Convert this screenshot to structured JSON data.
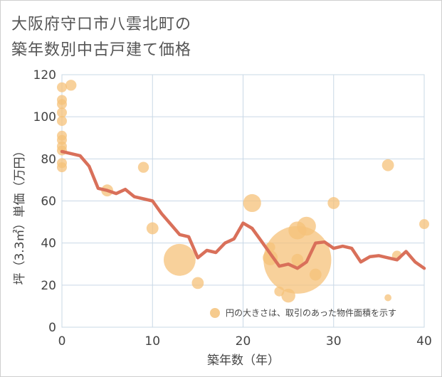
{
  "chart_data": {
    "type": "scatter",
    "title_line1": "大阪府守口市八雲北町の",
    "title_line2": "築年数別中古戸建て価格",
    "xlabel": "築年数（年）",
    "ylabel": "坪（3.3㎡）単価（万円）",
    "xlim": [
      0,
      40
    ],
    "ylim": [
      0,
      120
    ],
    "xticks": [
      "0",
      "10",
      "20",
      "30",
      "40"
    ],
    "yticks": [
      "0",
      "20",
      "40",
      "60",
      "80",
      "100",
      "120"
    ],
    "legend": "円の大きさは、取引のあった物件面積を示す",
    "colors": {
      "bubble": "#f5c27a",
      "line": "#d9705a",
      "grid": "#c9d8e6"
    },
    "bubbles": [
      {
        "x": 0,
        "y": 114,
        "s": 1.0
      },
      {
        "x": 0,
        "y": 108,
        "s": 1.0
      },
      {
        "x": 0,
        "y": 106,
        "s": 1.0
      },
      {
        "x": 0,
        "y": 102,
        "s": 1.0
      },
      {
        "x": 0,
        "y": 98,
        "s": 1.0
      },
      {
        "x": 0,
        "y": 91,
        "s": 1.0
      },
      {
        "x": 0,
        "y": 89,
        "s": 1.0
      },
      {
        "x": 0,
        "y": 86,
        "s": 1.0
      },
      {
        "x": 0,
        "y": 84,
        "s": 1.0
      },
      {
        "x": 0,
        "y": 78,
        "s": 1.0
      },
      {
        "x": 0,
        "y": 76,
        "s": 1.0
      },
      {
        "x": 1,
        "y": 115,
        "s": 1.1
      },
      {
        "x": 5,
        "y": 65,
        "s": 1.2
      },
      {
        "x": 9,
        "y": 76,
        "s": 1.1
      },
      {
        "x": 10,
        "y": 47,
        "s": 1.2
      },
      {
        "x": 13,
        "y": 32,
        "s": 3.2
      },
      {
        "x": 15,
        "y": 21,
        "s": 1.2
      },
      {
        "x": 21,
        "y": 59,
        "s": 1.8
      },
      {
        "x": 23,
        "y": 38,
        "s": 1.0
      },
      {
        "x": 23,
        "y": 33,
        "s": 1.5
      },
      {
        "x": 24,
        "y": 17,
        "s": 1.0
      },
      {
        "x": 25,
        "y": 15,
        "s": 1.4
      },
      {
        "x": 26,
        "y": 32,
        "s": 6.8
      },
      {
        "x": 26,
        "y": 46,
        "s": 1.8
      },
      {
        "x": 26,
        "y": 32,
        "s": 1.2
      },
      {
        "x": 27,
        "y": 48,
        "s": 1.9
      },
      {
        "x": 28,
        "y": 25,
        "s": 1.2
      },
      {
        "x": 30,
        "y": 59,
        "s": 1.2
      },
      {
        "x": 36,
        "y": 77,
        "s": 1.2
      },
      {
        "x": 36,
        "y": 14,
        "s": 0.7
      },
      {
        "x": 37,
        "y": 34,
        "s": 1.0
      },
      {
        "x": 40,
        "y": 49,
        "s": 1.0
      }
    ],
    "trend": {
      "x": [
        0,
        1,
        2,
        3,
        4,
        5,
        6,
        7,
        8,
        9,
        10,
        11,
        12,
        13,
        14,
        15,
        16,
        17,
        18,
        19,
        20,
        21,
        22,
        23,
        24,
        25,
        26,
        27,
        28,
        29,
        30,
        31,
        32,
        33,
        34,
        35,
        36,
        37,
        38,
        39,
        40
      ],
      "y": [
        83.5,
        82.5,
        81.5,
        76.5,
        66,
        65,
        63.5,
        65.5,
        62,
        61,
        60,
        54,
        49,
        44,
        43,
        33,
        36.5,
        35.5,
        40,
        42,
        49.5,
        47,
        41,
        35,
        29,
        30,
        28,
        31,
        40,
        40.5,
        37.5,
        38.5,
        37.5,
        31,
        33.5,
        34,
        33,
        32,
        36,
        31,
        28
      ]
    }
  }
}
